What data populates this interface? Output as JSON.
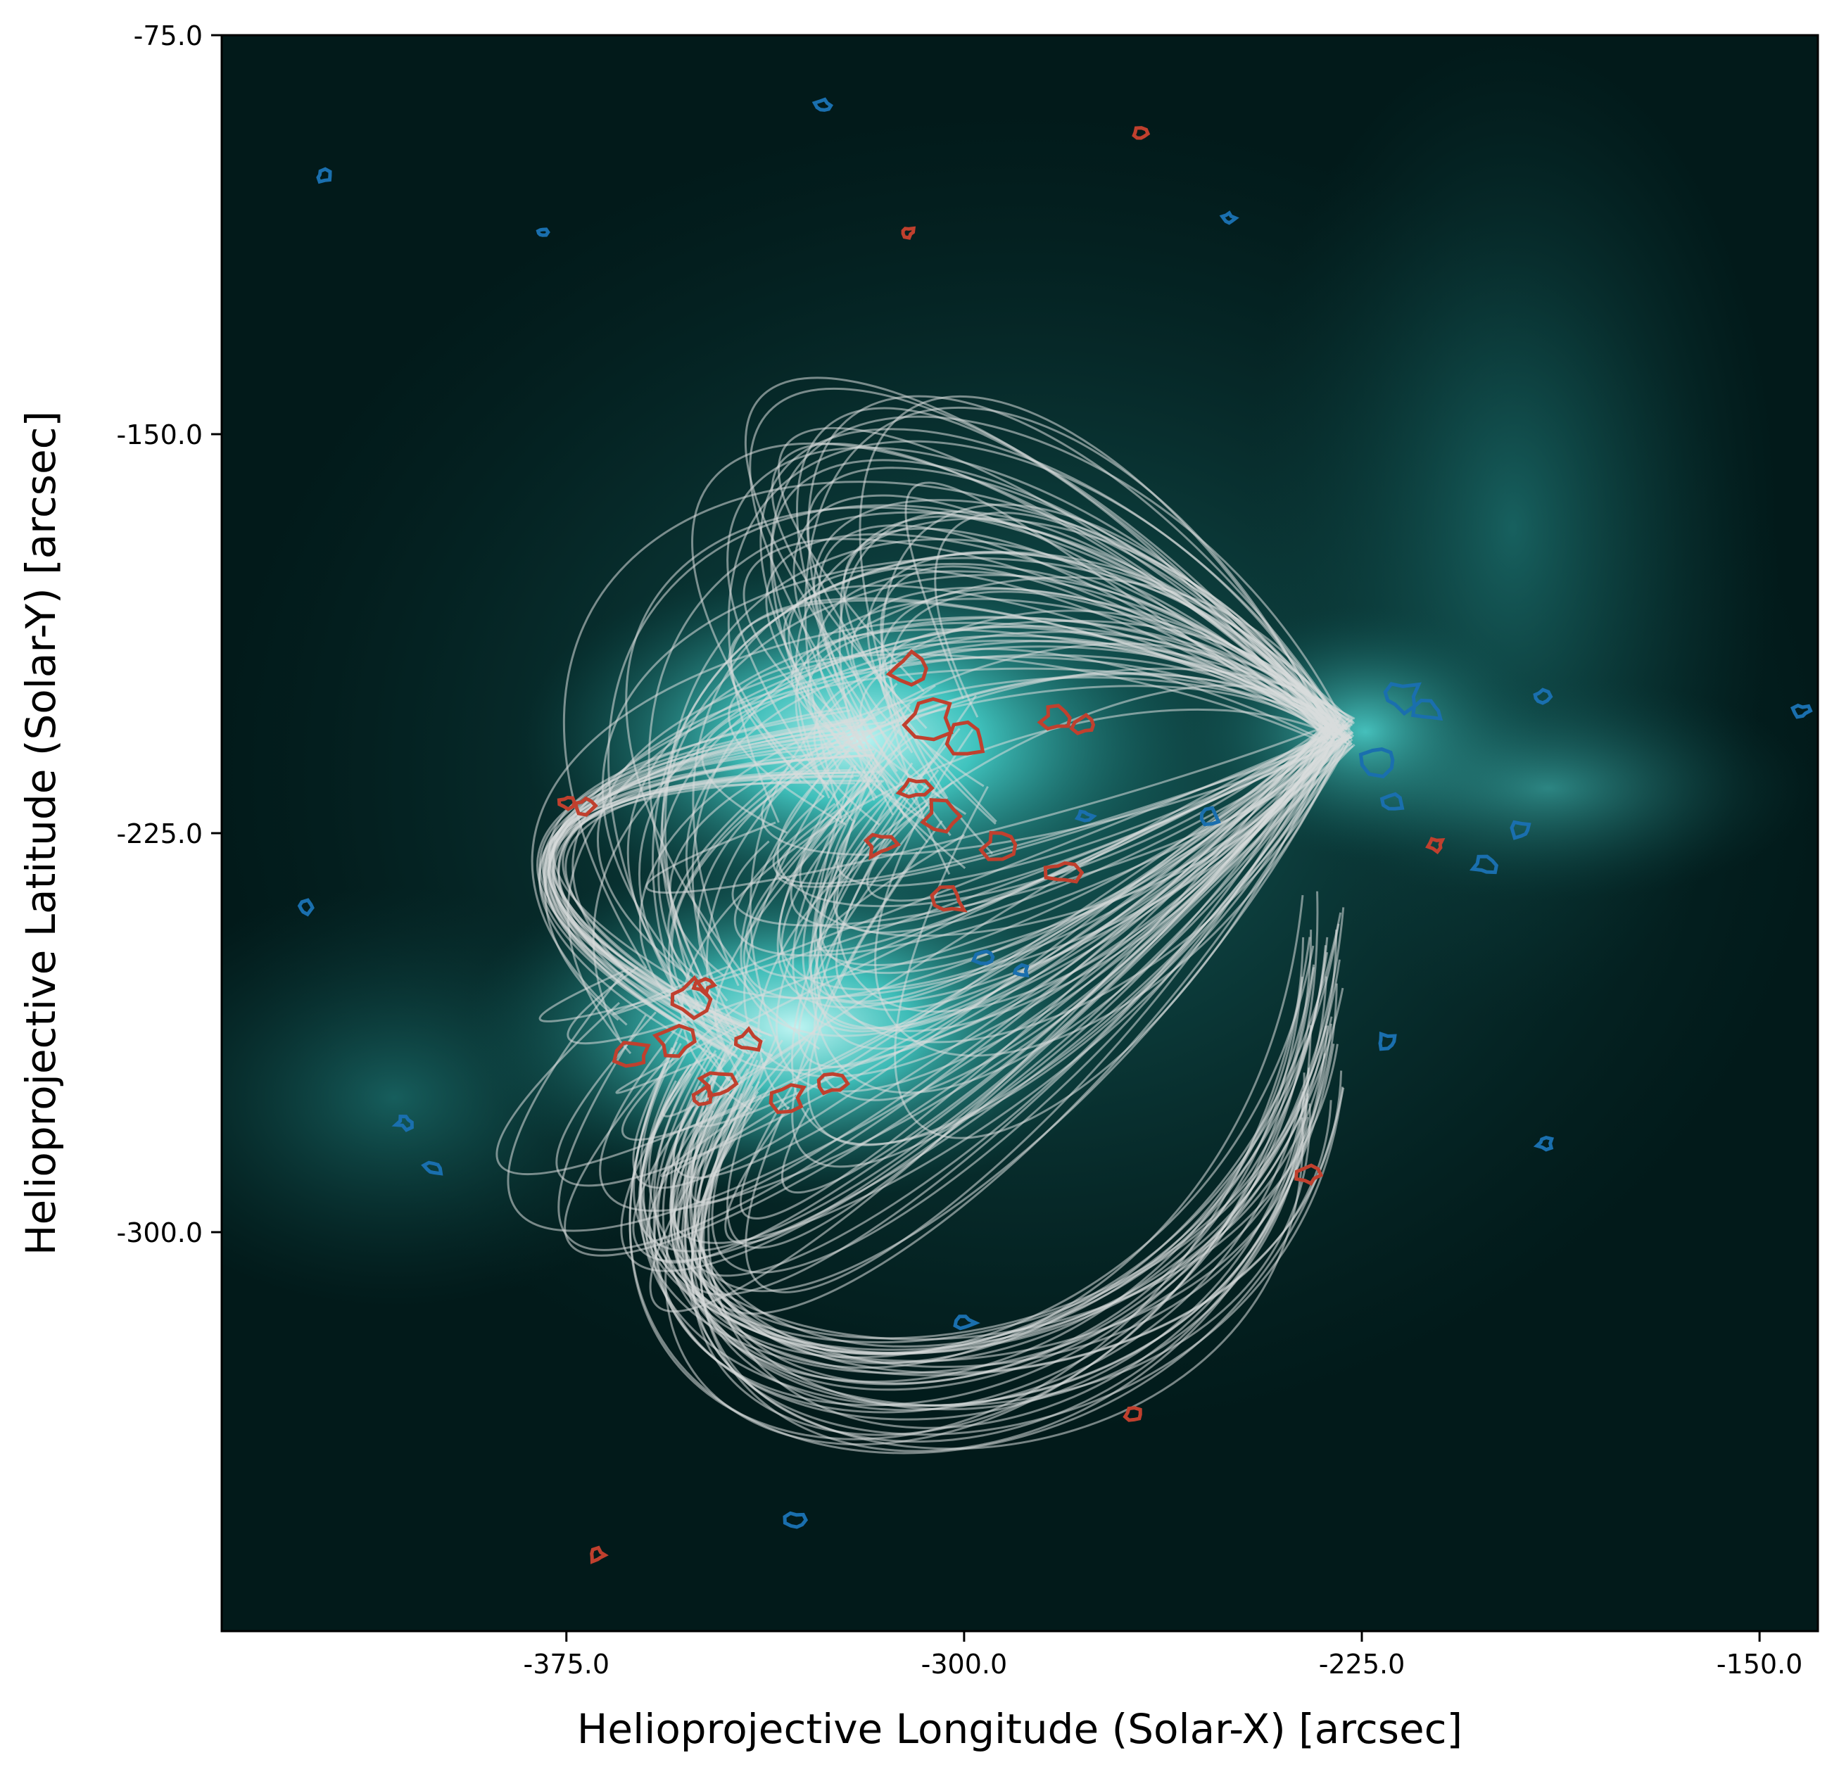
{
  "figure": {
    "xlabel": "Helioprojective Longitude (Solar-X) [arcsec]",
    "ylabel": "Helioprojective Latitude (Solar-Y) [arcsec]",
    "x_ticks": [
      "-375.0",
      "-300.0",
      "-225.0",
      "-150.0"
    ],
    "y_ticks": [
      "-75.0",
      "-150.0",
      "-225.0",
      "-300.0"
    ],
    "x_tick_values": [
      -375,
      -300,
      -225,
      -150
    ],
    "y_tick_values": [
      -75,
      -150,
      -225,
      -300
    ],
    "xlim": [
      -440,
      -139
    ],
    "ylim": [
      -375,
      -75
    ],
    "colors": {
      "background": "#021a1a",
      "emission": "#3fe0dc",
      "field_lines": "#d8dcdc",
      "positive_contours": "#c0402e",
      "negative_contours": "#1a6fae"
    }
  }
}
